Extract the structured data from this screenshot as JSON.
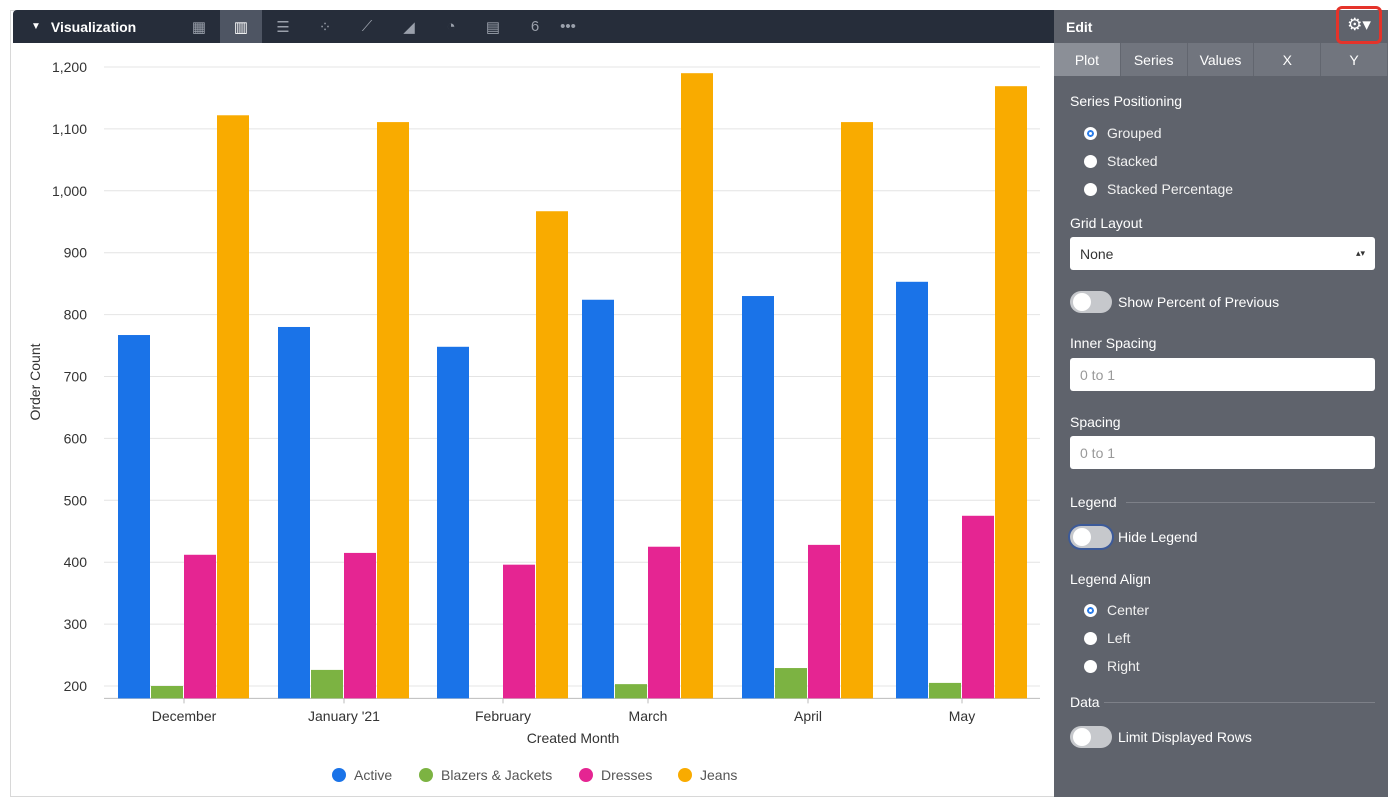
{
  "toolbar": {
    "title": "Visualization",
    "icons": [
      "table-icon",
      "column-chart-icon",
      "bar-chart-icon",
      "scatter-icon",
      "line-icon",
      "area-icon",
      "pie-icon",
      "map-icon",
      "single-value-icon",
      "more-icon"
    ],
    "single_value_label": "6",
    "more_label": "•••"
  },
  "panel": {
    "title": "Edit",
    "gear_label": "⚙▾",
    "tabs": [
      "Plot",
      "Series",
      "Values",
      "X",
      "Y"
    ],
    "series_positioning": {
      "label": "Series Positioning",
      "options": [
        "Grouped",
        "Stacked",
        "Stacked Percentage"
      ],
      "selected": "Grouped"
    },
    "grid_layout": {
      "label": "Grid Layout",
      "value": "None"
    },
    "show_percent_previous": {
      "label": "Show Percent of Previous",
      "on": false
    },
    "inner_spacing": {
      "label": "Inner Spacing",
      "placeholder": "0 to 1"
    },
    "spacing": {
      "label": "Spacing",
      "placeholder": "0 to 1"
    },
    "legend": {
      "label": "Legend",
      "hide_label": "Hide Legend",
      "hide_on": false
    },
    "legend_align": {
      "label": "Legend Align",
      "options": [
        "Center",
        "Left",
        "Right"
      ],
      "selected": "Center"
    },
    "data": {
      "label": "Data",
      "limit_label": "Limit Displayed Rows",
      "limit_on": false
    }
  },
  "chart_data": {
    "type": "bar",
    "xlabel": "Created Month",
    "ylabel": "Order Count",
    "categories": [
      "December",
      "January '21",
      "February",
      "March",
      "April",
      "May"
    ],
    "ylim": [
      180,
      1220
    ],
    "yticks": [
      200,
      300,
      400,
      500,
      600,
      700,
      800,
      900,
      1000,
      1100,
      1200
    ],
    "ytick_labels": [
      "200",
      "300",
      "400",
      "500",
      "600",
      "700",
      "800",
      "900",
      "1,000",
      "1,100",
      "1,200"
    ],
    "grid": true,
    "legend_position": "bottom-center",
    "series": [
      {
        "name": "Active",
        "color": "#1a73e8",
        "values": [
          767,
          780,
          748,
          824,
          830,
          853
        ]
      },
      {
        "name": "Blazers & Jackets",
        "color": "#7cb342",
        "values": [
          200,
          226,
          null,
          203,
          229,
          205
        ]
      },
      {
        "name": "Dresses",
        "color": "#e52592",
        "values": [
          412,
          415,
          396,
          425,
          428,
          475
        ]
      },
      {
        "name": "Jeans",
        "color": "#f9ab00",
        "values": [
          1122,
          1111,
          967,
          1190,
          1111,
          1169
        ]
      }
    ]
  }
}
